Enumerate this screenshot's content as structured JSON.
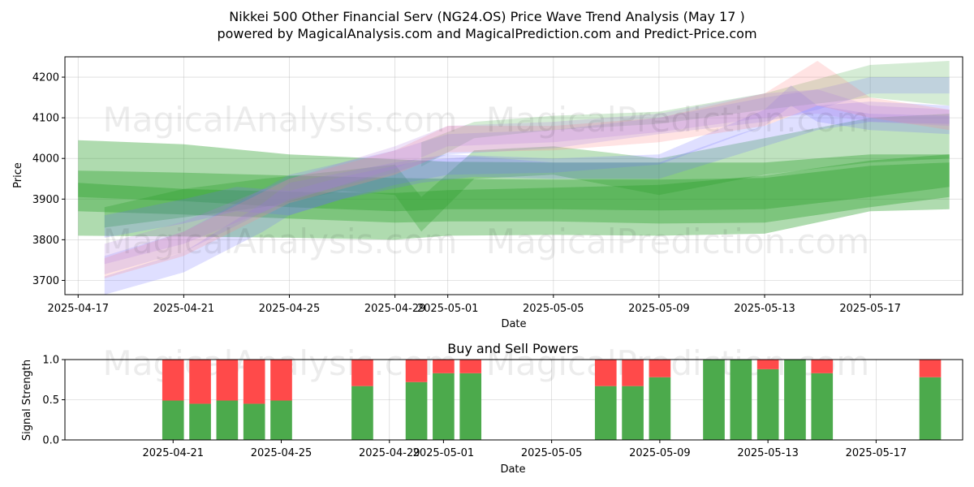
{
  "title_line1": "Nikkei 500 Other Financial Serv (NG24.OS) Price Wave Trend Analysis (May 17 )",
  "title_line2": "powered by MagicalAnalysis.com and MagicalPrediction.com and Predict-Price.com",
  "watermarks": [
    "MagicalAnalysis.com",
    "MagicalPrediction.com"
  ],
  "colors": {
    "green": "#2ca02c",
    "blue": "#6f6fff",
    "red": "#ff8a8a",
    "purple": "#b07ae0",
    "buy": "#4caa4c",
    "sell": "#ff4a4a"
  },
  "chart_data": [
    {
      "type": "area",
      "title": "",
      "xlabel": "Date",
      "ylabel": "Price",
      "ylim": [
        3665,
        4250
      ],
      "grid": true,
      "x_tick_labels": [
        "2025-04-17",
        "2025-04-21",
        "2025-04-25",
        "2025-04-29",
        "2025-05-01",
        "2025-05-05",
        "2025-05-09",
        "2025-05-13",
        "2025-05-17"
      ],
      "x_tick_days": [
        0,
        4,
        8,
        12,
        14,
        18,
        22,
        26,
        30
      ],
      "y_ticks": [
        3700,
        3800,
        3900,
        4000,
        4100,
        4200
      ],
      "x_day_range": [
        -0.5,
        33.5
      ],
      "series": [
        {
          "name": "green wave A",
          "color": "green",
          "opacity": 0.38,
          "x": [
            0,
            4,
            8,
            12,
            14,
            18,
            22,
            26,
            30,
            33
          ],
          "low": [
            3905,
            3895,
            3880,
            3870,
            3875,
            3875,
            3872,
            3875,
            3905,
            3930
          ],
          "high": [
            4045,
            4035,
            4010,
            3998,
            3992,
            3990,
            3990,
            3990,
            4010,
            4010
          ]
        },
        {
          "name": "green wave B",
          "color": "green",
          "opacity": 0.38,
          "x": [
            0,
            4,
            8,
            12,
            14,
            18,
            22,
            26,
            30,
            33
          ],
          "low": [
            3870,
            3862,
            3852,
            3842,
            3845,
            3845,
            3840,
            3842,
            3880,
            3905
          ],
          "high": [
            3970,
            3965,
            3958,
            3952,
            3950,
            3948,
            3948,
            3952,
            3982,
            3990
          ]
        },
        {
          "name": "green wave C",
          "color": "green",
          "opacity": 0.38,
          "x": [
            0,
            4,
            8,
            12,
            14,
            18,
            22,
            26,
            30,
            33
          ],
          "low": [
            3810,
            3808,
            3805,
            3800,
            3810,
            3812,
            3810,
            3815,
            3870,
            3875
          ],
          "high": [
            3940,
            3925,
            3918,
            3915,
            3922,
            3928,
            3935,
            3958,
            3995,
            4010
          ]
        },
        {
          "name": "green wave D",
          "color": "green",
          "opacity": 0.3,
          "x": [
            1,
            4,
            7,
            10,
            12,
            13,
            15,
            18,
            22,
            26,
            30,
            33
          ],
          "low": [
            3830,
            3855,
            3880,
            3920,
            3910,
            3820,
            3950,
            3960,
            3910,
            3960,
            3990,
            4000
          ],
          "high": [
            3880,
            3925,
            3950,
            3970,
            3985,
            3905,
            4020,
            4030,
            4000,
            4050,
            4100,
            4110
          ]
        },
        {
          "name": "green wave E",
          "color": "green",
          "opacity": 0.2,
          "x": [
            13,
            15,
            18,
            22,
            26,
            30,
            33
          ],
          "low": [
            3980,
            4050,
            4070,
            4085,
            4120,
            4150,
            4130
          ],
          "high": [
            4040,
            4090,
            4105,
            4115,
            4160,
            4230,
            4240
          ]
        },
        {
          "name": "blue wave A",
          "color": "blue",
          "opacity": 0.22,
          "x": [
            1,
            4,
            7,
            8,
            10,
            12,
            14,
            18,
            22,
            26,
            27,
            28,
            30,
            33
          ],
          "low": [
            3665,
            3720,
            3820,
            3860,
            3900,
            3935,
            3960,
            3965,
            3985,
            4080,
            4130,
            4090,
            4070,
            4060
          ],
          "high": [
            3710,
            3770,
            3890,
            3940,
            3965,
            3990,
            4010,
            4000,
            4010,
            4120,
            4180,
            4130,
            4110,
            4105
          ]
        },
        {
          "name": "blue wave B",
          "color": "blue",
          "opacity": 0.22,
          "x": [
            1,
            4,
            6,
            8,
            10,
            13,
            15,
            18,
            22,
            25,
            26,
            28,
            30,
            33
          ],
          "low": [
            3805,
            3840,
            3870,
            3860,
            3900,
            3940,
            3955,
            3950,
            3950,
            4010,
            4030,
            4070,
            4090,
            4085
          ],
          "high": [
            3860,
            3900,
            3930,
            3920,
            3955,
            3995,
            4005,
            3990,
            3990,
            4060,
            4080,
            4130,
            4140,
            4130
          ]
        },
        {
          "name": "blue wave C",
          "color": "blue",
          "opacity": 0.2,
          "x": [
            1,
            4,
            8,
            12,
            14,
            18,
            22,
            26,
            28,
            30,
            33
          ],
          "low": [
            3715,
            3770,
            3900,
            3965,
            4010,
            4025,
            4060,
            4090,
            4120,
            4160,
            4160
          ],
          "high": [
            3760,
            3820,
            3960,
            4020,
            4060,
            4070,
            4100,
            4150,
            4170,
            4200,
            4200
          ]
        },
        {
          "name": "red wave",
          "color": "red",
          "opacity": 0.24,
          "x": [
            1,
            4,
            8,
            12,
            14,
            18,
            22,
            26,
            28,
            30,
            33
          ],
          "low": [
            3705,
            3760,
            3890,
            3960,
            4015,
            4020,
            4040,
            4080,
            4130,
            4100,
            4070
          ],
          "high": [
            3755,
            3820,
            3950,
            4020,
            4080,
            4080,
            4100,
            4160,
            4240,
            4150,
            4120
          ]
        },
        {
          "name": "purple wave",
          "color": "purple",
          "opacity": 0.22,
          "x": [
            1,
            4,
            8,
            12,
            14,
            18,
            22,
            26,
            28,
            30,
            33
          ],
          "low": [
            3740,
            3790,
            3895,
            3975,
            4030,
            4040,
            4065,
            4100,
            4110,
            4090,
            4080
          ],
          "high": [
            3790,
            3845,
            3950,
            4030,
            4080,
            4090,
            4110,
            4160,
            4170,
            4130,
            4120
          ]
        }
      ]
    },
    {
      "type": "bar",
      "title": "Buy and Sell Powers",
      "xlabel": "Date",
      "ylabel": "Signal Strength",
      "ylim": [
        0,
        1.0
      ],
      "y_ticks": [
        0.0,
        0.5,
        1.0
      ],
      "y_tick_labels": [
        "0.0",
        "0.5",
        "1.0"
      ],
      "x_tick_labels": [
        "2025-04-21",
        "2025-04-25",
        "2025-04-29",
        "2025-05-01",
        "2025-05-05",
        "2025-05-09",
        "2025-05-13",
        "2025-05-17"
      ],
      "x_tick_days": [
        4,
        8,
        12,
        14,
        18,
        22,
        26,
        30
      ],
      "x_day_range": [
        0,
        33.2
      ],
      "days": [
        4,
        5,
        6,
        7,
        8,
        11,
        13,
        14,
        15,
        20,
        21,
        22,
        24,
        25,
        26,
        27,
        28,
        32
      ],
      "buy": [
        0.49,
        0.45,
        0.49,
        0.45,
        0.49,
        0.67,
        0.72,
        0.83,
        0.83,
        0.67,
        0.67,
        0.78,
        1.0,
        1.0,
        0.88,
        1.0,
        0.83,
        0.78
      ],
      "sell": [
        0.51,
        0.55,
        0.51,
        0.55,
        0.51,
        0.33,
        0.28,
        0.17,
        0.17,
        0.33,
        0.33,
        0.22,
        0.0,
        0.0,
        0.12,
        0.0,
        0.17,
        0.22
      ]
    }
  ]
}
